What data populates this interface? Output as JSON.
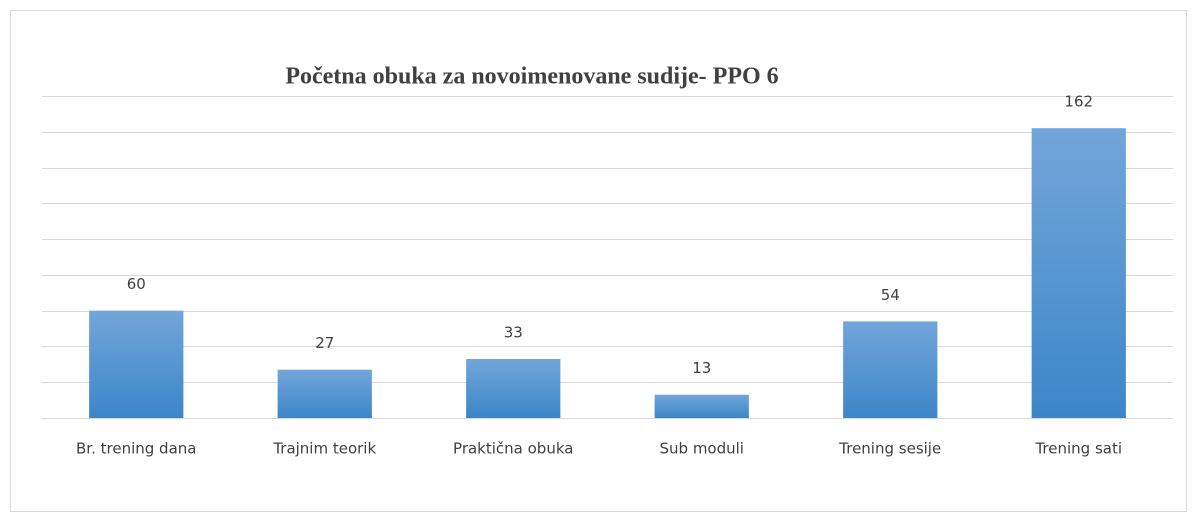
{
  "chart_data": {
    "type": "bar",
    "title": "Početna obuka za novoimenovane sudije- PPO 6",
    "categories": [
      "Br. trening dana",
      "Trajnim teorik",
      "Praktična obuka",
      "Sub moduli",
      "Trening sesije",
      "Trening sati"
    ],
    "values": [
      60,
      27,
      33,
      13,
      54,
      162
    ],
    "color": "#5b9bd5",
    "ylim": [
      0,
      180
    ],
    "yticks": [
      0,
      20,
      40,
      60,
      80,
      100,
      120,
      140,
      160,
      180
    ],
    "grid": true
  }
}
